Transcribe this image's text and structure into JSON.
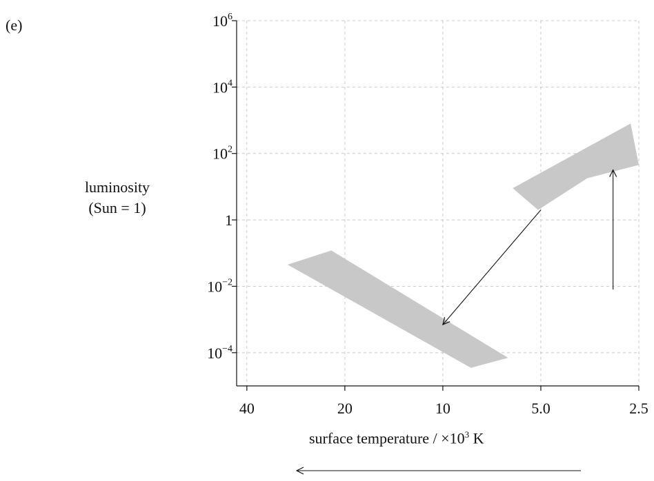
{
  "panel_label": "(e)",
  "chart_data": {
    "type": "scatter",
    "title": "",
    "xlabel_prefix": "surface temperature / ×10",
    "xlabel_exp": "3",
    "xlabel_suffix": " K",
    "ylabel_line1": "luminosity",
    "ylabel_line2": "(Sun = 1)",
    "x_scale": "log",
    "x_reversed": true,
    "y_scale": "log",
    "xlim": [
      43,
      2.5
    ],
    "ylim": [
      1e-05,
      1000000
    ],
    "grid": true,
    "x_ticks": [
      {
        "value": 40,
        "label": "40"
      },
      {
        "value": 20,
        "label": "20"
      },
      {
        "value": 10,
        "label": "10"
      },
      {
        "value": 5,
        "label": "5.0"
      },
      {
        "value": 2.5,
        "label": "2.5"
      }
    ],
    "y_ticks": [
      {
        "value": 1000000,
        "base": "10",
        "exp": "6"
      },
      {
        "value": 10000,
        "base": "10",
        "exp": "4"
      },
      {
        "value": 100,
        "base": "10",
        "exp": "2"
      },
      {
        "value": 1,
        "base": "1",
        "exp": ""
      },
      {
        "value": 0.01,
        "base": "10",
        "exp": "−2"
      },
      {
        "value": 0.0001,
        "base": "10",
        "exp": "−4"
      }
    ],
    "regions": [
      {
        "name": "lower band",
        "polygon": [
          [
            30,
            0.045
          ],
          [
            22,
            0.12
          ],
          [
            6.3,
            7e-05
          ],
          [
            8.2,
            3.5e-05
          ]
        ]
      },
      {
        "name": "upper band",
        "polygon": [
          [
            6.1,
            9
          ],
          [
            2.65,
            800
          ],
          [
            2.5,
            45
          ],
          [
            3.6,
            18
          ],
          [
            5.1,
            2
          ]
        ]
      }
    ],
    "arrows": [
      {
        "name": "diagonal arrow",
        "from": [
          5.0,
          2.0
        ],
        "to": [
          10.0,
          0.0007
        ]
      },
      {
        "name": "vertical arrow",
        "from": [
          3.0,
          0.008
        ],
        "to": [
          3.0,
          32
        ]
      },
      {
        "name": "temperature direction arrow",
        "note": "increasing temperature direction below x-axis"
      }
    ]
  }
}
